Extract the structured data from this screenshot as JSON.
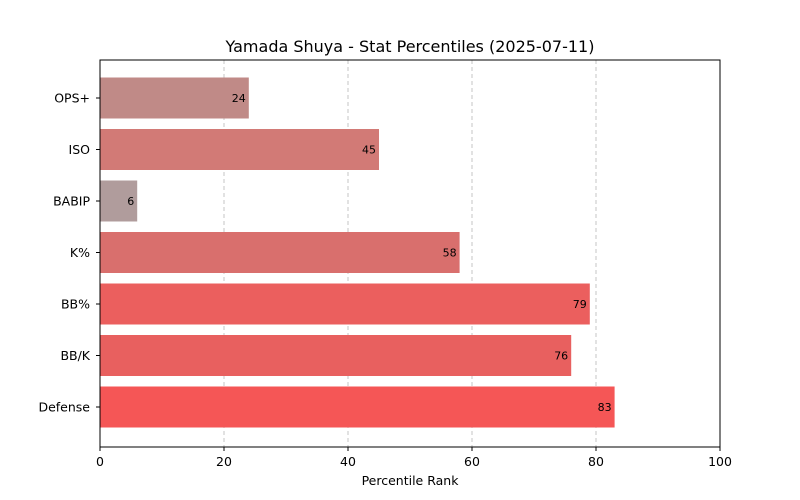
{
  "chart_data": {
    "type": "bar",
    "orientation": "horizontal",
    "title": "Yamada Shuya - Stat Percentiles (2025-07-11)",
    "xlabel": "Percentile Rank",
    "ylabel": "",
    "xlim": [
      0,
      100
    ],
    "xticks": [
      0,
      20,
      40,
      60,
      80,
      100
    ],
    "grid": "vertical-dashed",
    "categories": [
      "OPS+",
      "ISO",
      "BABIP",
      "K%",
      "BB%",
      "BB/K",
      "Defense"
    ],
    "values": [
      24,
      45,
      6,
      58,
      79,
      76,
      83
    ],
    "colors": [
      "#c08a87",
      "#d27a76",
      "#b09c9c",
      "#d96f6d",
      "#eb5f5e",
      "#e8605f",
      "#f55656"
    ]
  }
}
